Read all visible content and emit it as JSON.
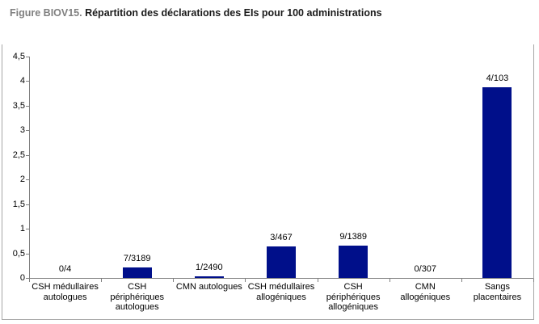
{
  "header": {
    "title_prefix": "Figure BIOV15.",
    "title_text": " Répartition des déclarations des EIs pour 100 administrations"
  },
  "colors": {
    "bar": "#000f8a",
    "axis": "#808080",
    "frame": "#a6a6a6",
    "title_prefix": "#7f7f7f",
    "text": "#000000"
  },
  "chart_data": {
    "type": "bar",
    "title": "Figure BIOV15. Répartition des déclarations des EIs pour 100 administrations",
    "categories": [
      "CSH médullaires autologues",
      "CSH périphériques autologues",
      "CMN autologues",
      "CSH médullaires allogéniques",
      "CSH périphériques allogéniques",
      "CMN allogéniques",
      "Sangs placentaires"
    ],
    "bar_labels": [
      "0/4",
      "7/3189",
      "1/2490",
      "3/467",
      "9/1389",
      "0/307",
      "4/103"
    ],
    "values": [
      0,
      0.22,
      0.04,
      0.64,
      0.65,
      0,
      3.88
    ],
    "xlabel": "",
    "ylabel": "",
    "ylim": [
      0,
      4.5
    ],
    "ytick_step": 0.5,
    "ytick_labels": [
      "0",
      "0,5",
      "1",
      "1,5",
      "2",
      "2,5",
      "3",
      "3,5",
      "4",
      "4,5"
    ],
    "grid": false,
    "legend": null
  }
}
